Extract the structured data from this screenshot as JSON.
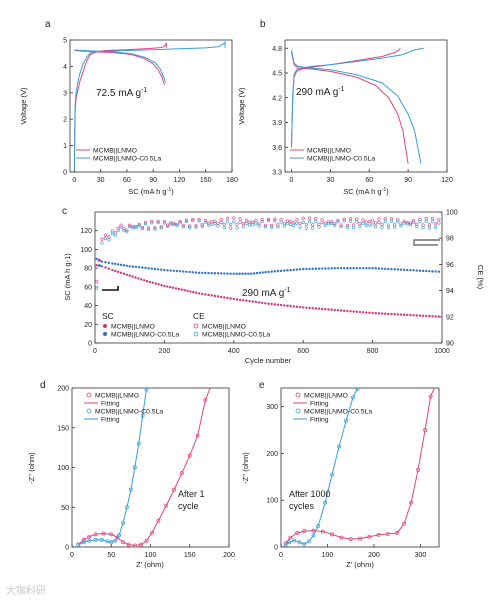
{
  "panels": {
    "a": {
      "label": "a",
      "annotation": "72.5 mA g",
      "annotation_sup": "-1",
      "chart_data": {
        "type": "line",
        "xlabel": "SC (mA h g",
        "xlabel_sup": "-1",
        "xlabel_tail": ")",
        "ylabel": "Voltage (V)",
        "xlim": [
          -5,
          180
        ],
        "ylim": [
          0,
          5
        ],
        "xticks": [
          0,
          30,
          60,
          90,
          120,
          150,
          180
        ],
        "yticks": [
          0,
          1,
          2,
          3,
          4,
          5
        ],
        "legend": "bottom-left",
        "series": [
          {
            "name": "MCMB||LNMO",
            "color": "#e0447f",
            "x": [
              0,
              0.5,
              1,
              2,
              4,
              6,
              8,
              10,
              14,
              18,
              25,
              35,
              50,
              70,
              85,
              95,
              100,
              102,
              104,
              105,
              105
            ],
            "y": [
              0.1,
              1.5,
              2.4,
              2.8,
              3.1,
              3.4,
              3.6,
              3.8,
              4.2,
              4.45,
              4.55,
              4.6,
              4.62,
              4.65,
              4.68,
              4.7,
              4.72,
              4.75,
              4.82,
              4.9,
              4.7
            ]
          },
          {
            "name": "MCMB||LNMO-C0.5La",
            "color": "#3a9fd6",
            "x": [
              0,
              0.5,
              1,
              2,
              4,
              6,
              10,
              14,
              18,
              25,
              40,
              60,
              90,
              120,
              150,
              165,
              170,
              172,
              172
            ],
            "y": [
              0.1,
              1.8,
              2.6,
              3.0,
              3.4,
              3.7,
              4.1,
              4.35,
              4.5,
              4.56,
              4.58,
              4.6,
              4.63,
              4.67,
              4.7,
              4.75,
              4.85,
              4.92,
              4.7
            ]
          },
          {
            "name": "MCMB||LNMO discharge",
            "color": "#e0447f",
            "x": [
              0,
              10,
              25,
              45,
              65,
              80,
              90,
              96,
              100,
              103
            ],
            "y": [
              4.6,
              4.58,
              4.55,
              4.52,
              4.45,
              4.3,
              4.1,
              3.85,
              3.6,
              3.3
            ]
          },
          {
            "name": "MCMB||LNMO-C0.5La discharge",
            "color": "#3a9fd6",
            "x": [
              0,
              10,
              25,
              45,
              65,
              80,
              92,
              98,
              102,
              104
            ],
            "y": [
              4.62,
              4.6,
              4.58,
              4.55,
              4.48,
              4.35,
              4.15,
              3.9,
              3.6,
              3.4
            ]
          }
        ]
      }
    },
    "b": {
      "label": "b",
      "annotation": "290 mA g",
      "annotation_sup": "-1",
      "chart_data": {
        "type": "line",
        "xlabel": "SC (mA h g",
        "xlabel_sup": "-1",
        "xlabel_tail": ")",
        "ylabel": "Voltage (V)",
        "xlim": [
          -5,
          120
        ],
        "ylim": [
          3.3,
          4.9
        ],
        "xticks": [
          0,
          30,
          60,
          90,
          120
        ],
        "yticks": [
          3.3,
          3.6,
          3.9,
          4.2,
          4.5,
          4.8
        ],
        "legend": "bottom-left",
        "series": [
          {
            "name": "MCMB||LNMO",
            "color": "#e0447f",
            "x": [
              0,
              1,
              2,
              4,
              8,
              15,
              30,
              50,
              70,
              80,
              83,
              84
            ],
            "y": [
              3.6,
              4.2,
              4.45,
              4.52,
              4.55,
              4.57,
              4.6,
              4.65,
              4.7,
              4.75,
              4.78,
              4.8
            ]
          },
          {
            "name": "MCMB||LNMO-C0.5La",
            "color": "#3a9fd6",
            "x": [
              0,
              1,
              2,
              4,
              8,
              15,
              30,
              50,
              70,
              85,
              95,
              102
            ],
            "y": [
              3.6,
              4.25,
              4.48,
              4.54,
              4.56,
              4.58,
              4.6,
              4.64,
              4.68,
              4.72,
              4.78,
              4.8
            ]
          },
          {
            "name": "MCMB||LNMO discharge",
            "color": "#e0447f",
            "x": [
              0,
              2,
              5,
              15,
              30,
              50,
              65,
              75,
              82,
              86,
              88,
              90
            ],
            "y": [
              4.75,
              4.6,
              4.56,
              4.55,
              4.52,
              4.45,
              4.35,
              4.2,
              4.0,
              3.8,
              3.6,
              3.4
            ]
          },
          {
            "name": "MCMB||LNMO-C0.5La discharge",
            "color": "#3a9fd6",
            "x": [
              0,
              2,
              5,
              15,
              30,
              50,
              70,
              82,
              90,
              95,
              98,
              100
            ],
            "y": [
              4.78,
              4.62,
              4.58,
              4.56,
              4.54,
              4.48,
              4.38,
              4.22,
              4.0,
              3.8,
              3.55,
              3.4
            ]
          }
        ]
      }
    },
    "c": {
      "label": "c",
      "annotation": "290 mA g",
      "annotation_sup": "-1",
      "sc_tag": "SC",
      "ce_tag": "CE",
      "chart_data": {
        "type": "scatter",
        "xlabel": "Cycle number",
        "ylabel": "SC (mA h g",
        "ylabel_sup": "-1",
        "ylabel_tail": ")",
        "y2label": "CE (%)",
        "xlim": [
          0,
          1000
        ],
        "ylim": [
          0,
          140
        ],
        "y2lim": [
          90,
          100
        ],
        "xticks": [
          0,
          200,
          400,
          600,
          800,
          1000
        ],
        "yticks": [
          0,
          20,
          40,
          60,
          80,
          100,
          120
        ],
        "y2ticks": [
          90,
          92,
          94,
          96,
          98,
          100
        ],
        "legend": "bottom-left",
        "series": [
          {
            "name": "MCMB||LNMO",
            "axis": "left",
            "color": "#d6337a",
            "filled": true,
            "x": [
              5,
              20,
              50,
              100,
              150,
              200,
              250,
              300,
              400,
              500,
              600,
              700,
              800,
              900,
              1000
            ],
            "y": [
              83,
              82,
              78,
              72,
              66,
              61,
              57,
              53,
              47,
              42,
              38,
              35,
              32,
              30,
              28
            ]
          },
          {
            "name": "MCMB||LNMO-C0.5La",
            "axis": "left",
            "color": "#2f73c8",
            "filled": true,
            "x": [
              5,
              20,
              50,
              100,
              200,
              300,
              400,
              450,
              500,
              600,
              700,
              800,
              900,
              1000
            ],
            "y": [
              90,
              87,
              85,
              82,
              78,
              75,
              74,
              74,
              76,
              79,
              80,
              80,
              78,
              76
            ]
          },
          {
            "name": "MCMB||LNMO",
            "axis": "right",
            "color": "#e0447f",
            "filled": false,
            "x": [
              5,
              20,
              50,
              100,
              200,
              300,
              400,
              500,
              600,
              700,
              800,
              900,
              1000
            ],
            "y": [
              94.5,
              97.8,
              98.6,
              98.9,
              99.1,
              99.2,
              99.3,
              99.2,
              99.3,
              99.2,
              99.3,
              99.2,
              99.3
            ]
          },
          {
            "name": "MCMB||LNMO-C0.5La",
            "axis": "right",
            "color": "#3a9fd6",
            "filled": false,
            "x": [
              5,
              20,
              50,
              100,
              200,
              300,
              400,
              500,
              600,
              700,
              800,
              900,
              1000
            ],
            "y": [
              94.0,
              97.5,
              98.4,
              98.8,
              99.0,
              99.1,
              99.0,
              99.1,
              99.0,
              99.1,
              99.0,
              99.1,
              99.0
            ]
          }
        ]
      }
    },
    "d": {
      "label": "d",
      "annotation_line1": "After 1",
      "annotation_line2": "cycle",
      "chart_data": {
        "type": "scatter",
        "xlabel": "Z' (ohm)",
        "ylabel": "-Z'' (ohm)",
        "xlim": [
          0,
          200
        ],
        "ylim": [
          0,
          200
        ],
        "xticks": [
          0,
          50,
          100,
          150,
          200
        ],
        "yticks": [
          0,
          50,
          100,
          150,
          200
        ],
        "legend": "top-left",
        "series": [
          {
            "name": "MCMB||LNMO",
            "color": "#e0447f",
            "style": "markers",
            "x": [
              8,
              15,
              22,
              30,
              40,
              50,
              58,
              65,
              72,
              80,
              88,
              95,
              102,
              110,
              120,
              130,
              140,
              150,
              160,
              170
            ],
            "y": [
              3,
              9,
              13,
              16,
              17,
              16,
              12,
              6,
              3,
              2,
              3,
              8,
              18,
              33,
              52,
              72,
              93,
              115,
              140,
              185
            ]
          },
          {
            "name": "Fitting",
            "color": "#e0447f",
            "style": "line",
            "x": [
              8,
              15,
              22,
              30,
              40,
              50,
              58,
              65,
              72,
              80,
              88,
              95,
              102,
              110,
              120,
              130,
              140,
              150,
              160,
              170,
              176
            ],
            "y": [
              3,
              9,
              13,
              16,
              17,
              16,
              12,
              6,
              3,
              2,
              3,
              8,
              18,
              33,
              52,
              72,
              93,
              115,
              140,
              185,
              200
            ]
          },
          {
            "name": "MCMB||LNMO-C0.5La",
            "color": "#3a9fd6",
            "style": "markers",
            "x": [
              8,
              15,
              22,
              30,
              38,
              45,
              50,
              55,
              60,
              65,
              70,
              75,
              80,
              85,
              90,
              95
            ],
            "y": [
              3,
              6,
              8,
              9,
              9,
              7,
              6,
              8,
              15,
              30,
              50,
              72,
              100,
              130,
              165,
              198
            ]
          },
          {
            "name": "Fitting",
            "color": "#3a9fd6",
            "style": "line",
            "x": [
              8,
              15,
              22,
              30,
              38,
              45,
              50,
              55,
              60,
              65,
              70,
              75,
              80,
              85,
              90,
              95
            ],
            "y": [
              3,
              6,
              8,
              9,
              9,
              7,
              6,
              8,
              15,
              30,
              50,
              72,
              100,
              130,
              165,
              200
            ]
          }
        ]
      }
    },
    "e": {
      "label": "e",
      "annotation_line1": "After 1000",
      "annotation_line2": "cycles",
      "chart_data": {
        "type": "scatter",
        "xlabel": "Z' (ohm)",
        "ylabel": "-Z'' (ohm)",
        "xlim": [
          0,
          340
        ],
        "ylim": [
          0,
          340
        ],
        "xticks": [
          0,
          100,
          200,
          300
        ],
        "yticks": [
          0,
          100,
          200,
          300
        ],
        "legend": "top-left",
        "series": [
          {
            "name": "MCMB||LNMO",
            "color": "#e0447f",
            "style": "markers",
            "x": [
              10,
              20,
              35,
              50,
              70,
              90,
              110,
              130,
              150,
              170,
              190,
              210,
              230,
              250,
              265,
              280,
              295,
              310,
              322
            ],
            "y": [
              8,
              20,
              30,
              34,
              35,
              33,
              27,
              20,
              17,
              18,
              22,
              26,
              28,
              30,
              50,
              95,
              165,
              250,
              322
            ]
          },
          {
            "name": "Fitting",
            "color": "#e0447f",
            "style": "line",
            "x": [
              10,
              20,
              35,
              50,
              70,
              90,
              110,
              130,
              150,
              170,
              190,
              210,
              230,
              250,
              265,
              280,
              295,
              310,
              322,
              330
            ],
            "y": [
              8,
              20,
              30,
              34,
              35,
              33,
              27,
              20,
              17,
              18,
              22,
              26,
              28,
              30,
              50,
              95,
              165,
              250,
              322,
              340
            ]
          },
          {
            "name": "MCMB||LNMO-C0.5La",
            "color": "#3a9fd6",
            "style": "markers",
            "x": [
              10,
              18,
              28,
              40,
              50,
              60,
              70,
              80,
              95,
              110,
              125,
              140,
              155,
              165
            ],
            "y": [
              5,
              10,
              14,
              10,
              6,
              12,
              25,
              45,
              95,
              155,
              215,
              270,
              320,
              338
            ]
          },
          {
            "name": "Fitting",
            "color": "#3a9fd6",
            "style": "line",
            "x": [
              10,
              18,
              28,
              40,
              50,
              60,
              70,
              80,
              95,
              110,
              125,
              140,
              155,
              165
            ],
            "y": [
              5,
              10,
              14,
              10,
              6,
              12,
              25,
              45,
              95,
              155,
              215,
              270,
              320,
              340
            ]
          }
        ]
      }
    }
  },
  "watermark": "大咖科研"
}
